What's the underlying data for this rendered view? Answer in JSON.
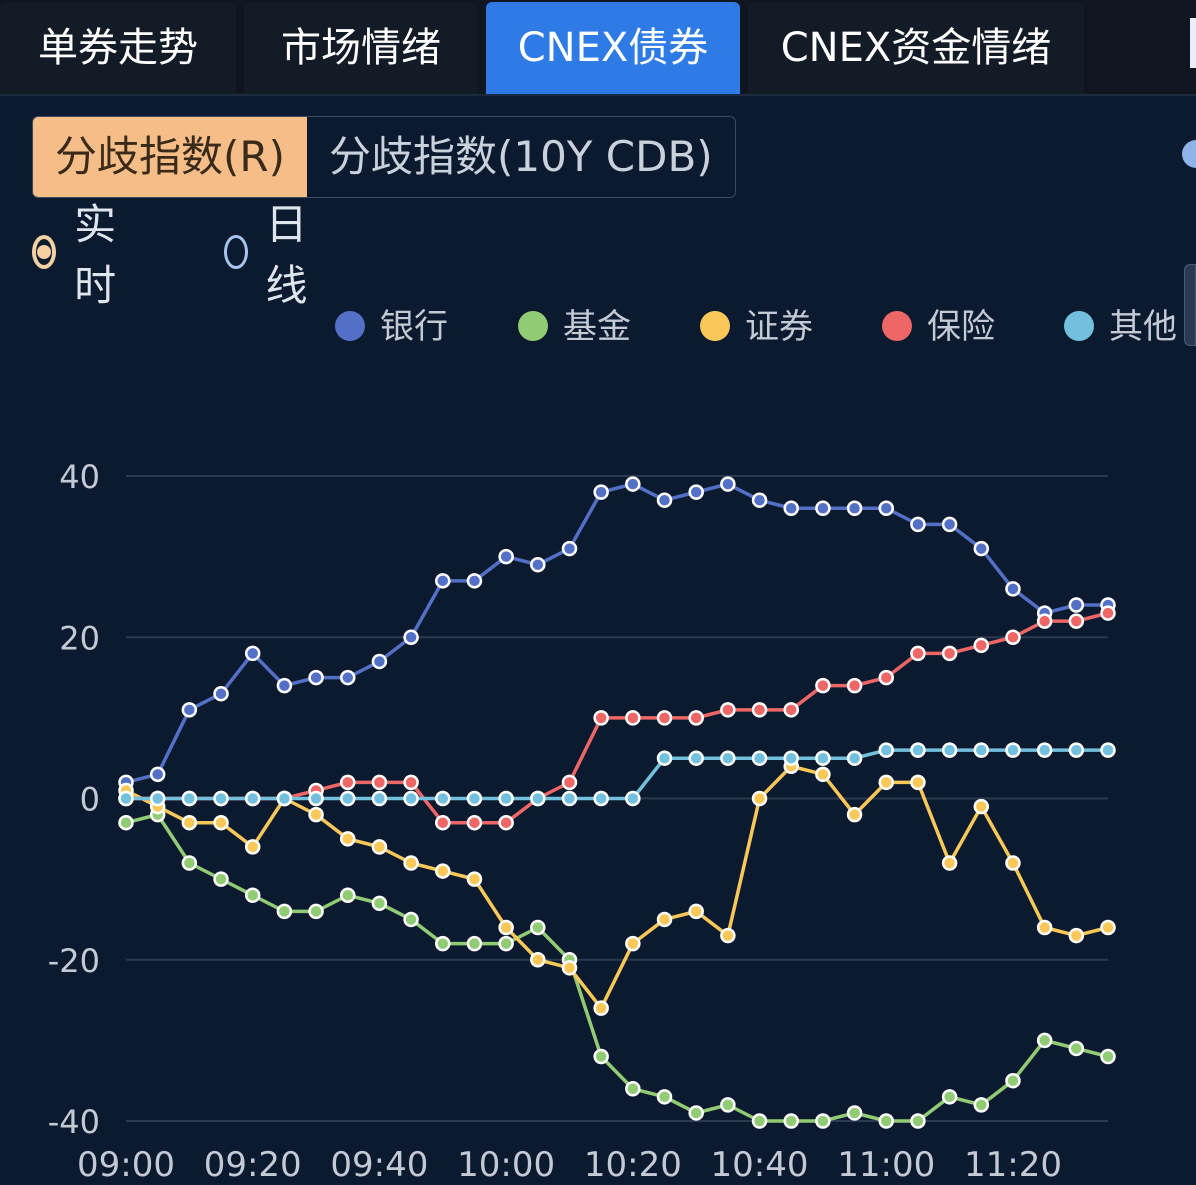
{
  "tabs": [
    {
      "label": "单券走势",
      "active": false
    },
    {
      "label": "市场情绪",
      "active": false
    },
    {
      "label": "CNEX债券",
      "active": true
    },
    {
      "label": "CNEX资金情绪",
      "active": false
    }
  ],
  "segmented": {
    "options": [
      "分歧指数(R)",
      "分歧指数(10Y CDB)"
    ],
    "selected": 0
  },
  "radios": {
    "options": [
      "实时",
      "日线"
    ],
    "selected": 0
  },
  "colors": {
    "accent_tab": "#2f7be6",
    "segment_active": "#f5be88"
  },
  "chart_data": {
    "type": "line",
    "legend_position": "top-right",
    "grid": true,
    "x": [
      "09:00",
      "09:05",
      "09:10",
      "09:15",
      "09:20",
      "09:25",
      "09:30",
      "09:35",
      "09:40",
      "09:45",
      "09:50",
      "09:55",
      "10:00",
      "10:05",
      "10:10",
      "10:15",
      "10:20",
      "10:25",
      "10:30",
      "10:35",
      "10:40",
      "10:45",
      "10:50",
      "10:55",
      "11:00",
      "11:05",
      "11:10",
      "11:15",
      "11:20",
      "11:25",
      "11:30",
      "11:35"
    ],
    "x_tick_labels": [
      "09:00",
      "09:20",
      "09:40",
      "10:00",
      "10:20",
      "10:40",
      "11:00",
      "11:20"
    ],
    "ylim": [
      -40,
      40
    ],
    "y_ticks": [
      40,
      20,
      0,
      -20,
      -40
    ],
    "series": [
      {
        "name": "银行",
        "color": "#5470c6",
        "values": [
          2,
          3,
          11,
          13,
          18,
          14,
          15,
          15,
          17,
          20,
          27,
          27,
          30,
          29,
          31,
          38,
          39,
          37,
          38,
          39,
          37,
          36,
          36,
          36,
          36,
          34,
          34,
          31,
          26,
          23,
          24,
          24
        ]
      },
      {
        "name": "基金",
        "color": "#91cc75",
        "values": [
          -3,
          -2,
          -8,
          -10,
          -12,
          -14,
          -14,
          -12,
          -13,
          -15,
          -18,
          -18,
          -18,
          -16,
          -20,
          -32,
          -36,
          -37,
          -39,
          -38,
          -40,
          -40,
          -40,
          -39,
          -40,
          -40,
          -37,
          -38,
          -35,
          -30,
          -31,
          -32
        ]
      },
      {
        "name": "证券",
        "color": "#fac858",
        "values": [
          1,
          -1,
          -3,
          -3,
          -6,
          0,
          -2,
          -5,
          -6,
          -8,
          -9,
          -10,
          -16,
          -20,
          -21,
          -26,
          -18,
          -15,
          -14,
          -17,
          0,
          4,
          3,
          -2,
          2,
          2,
          -8,
          -1,
          -8,
          -16,
          -17,
          -16
        ]
      },
      {
        "name": "保险",
        "color": "#ee6666",
        "values": [
          0,
          0,
          0,
          0,
          0,
          0,
          1,
          2,
          2,
          2,
          -3,
          -3,
          -3,
          0,
          2,
          10,
          10,
          10,
          10,
          11,
          11,
          11,
          14,
          14,
          15,
          18,
          18,
          19,
          20,
          22,
          22,
          23
        ]
      },
      {
        "name": "其他",
        "color": "#73c0de",
        "values": [
          0,
          0,
          0,
          0,
          0,
          0,
          0,
          0,
          0,
          0,
          0,
          0,
          0,
          0,
          0,
          0,
          0,
          5,
          5,
          5,
          5,
          5,
          5,
          5,
          6,
          6,
          6,
          6,
          6,
          6,
          6,
          6
        ]
      }
    ]
  }
}
